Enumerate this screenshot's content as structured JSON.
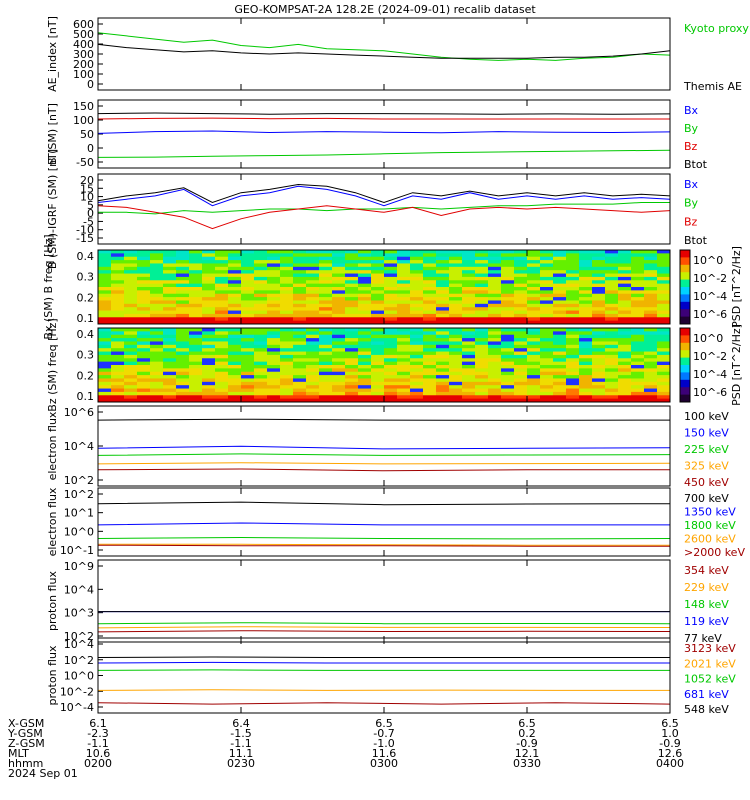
{
  "title": "GEO-KOMPSAT-2A 128.2E (2024-09-01) recalib dataset",
  "chart_data": [
    {
      "type": "line",
      "ylabel": "AE_index [nT]",
      "yticks": [
        "600",
        "500",
        "400",
        "300",
        "200",
        "100",
        "0"
      ],
      "ylim": [
        0,
        600
      ],
      "series": [
        {
          "name": "Kyoto proxy AE",
          "color": "#00c800",
          "x": [
            0.0,
            0.05,
            0.1,
            0.15,
            0.2,
            0.25,
            0.3,
            0.35,
            0.4,
            0.45,
            0.5,
            0.55,
            0.6,
            0.65,
            0.7,
            0.75,
            0.8,
            0.85,
            0.9,
            0.95,
            1.0
          ],
          "y": [
            500,
            470,
            440,
            410,
            430,
            380,
            360,
            390,
            350,
            340,
            330,
            300,
            270,
            250,
            240,
            250,
            240,
            260,
            270,
            300,
            290
          ]
        },
        {
          "name": "Themis AE",
          "color": "#000000",
          "x": [
            0.0,
            0.05,
            0.1,
            0.15,
            0.2,
            0.25,
            0.3,
            0.35,
            0.4,
            0.45,
            0.5,
            0.55,
            0.6,
            0.65,
            0.7,
            0.75,
            0.8,
            0.85,
            0.9,
            0.95,
            1.0
          ],
          "y": [
            390,
            360,
            340,
            320,
            330,
            310,
            300,
            310,
            300,
            290,
            280,
            270,
            260,
            260,
            260,
            260,
            270,
            270,
            280,
            300,
            330
          ]
        }
      ]
    },
    {
      "type": "line",
      "ylabel": "B (SM) [nT]",
      "yticks": [
        "150",
        "100",
        "50",
        "0",
        "-50"
      ],
      "ylim": [
        -50,
        150
      ],
      "series": [
        {
          "name": "Bx",
          "color": "#0000ff",
          "x": [
            0.0,
            0.1,
            0.2,
            0.3,
            0.4,
            0.5,
            0.6,
            0.7,
            0.8,
            0.9,
            1.0
          ],
          "y": [
            52,
            58,
            60,
            55,
            58,
            56,
            54,
            58,
            56,
            55,
            57
          ]
        },
        {
          "name": "By",
          "color": "#00c800",
          "x": [
            0.0,
            0.1,
            0.2,
            0.3,
            0.4,
            0.5,
            0.6,
            0.7,
            0.8,
            0.9,
            1.0
          ],
          "y": [
            -28,
            -27,
            -24,
            -22,
            -20,
            -16,
            -12,
            -10,
            -8,
            -6,
            -4
          ]
        },
        {
          "name": "Bz",
          "color": "#e00000",
          "x": [
            0.0,
            0.1,
            0.2,
            0.3,
            0.4,
            0.5,
            0.6,
            0.7,
            0.8,
            0.9,
            1.0
          ],
          "y": [
            100,
            102,
            103,
            101,
            102,
            100,
            100,
            100,
            100,
            100,
            100
          ]
        },
        {
          "name": "Btot",
          "color": "#000000",
          "x": [
            0.0,
            0.1,
            0.2,
            0.3,
            0.4,
            0.5,
            0.6,
            0.7,
            0.8,
            0.9,
            1.0
          ],
          "y": [
            118,
            120,
            118,
            116,
            118,
            118,
            117,
            116,
            117,
            116,
            117
          ]
        }
      ]
    },
    {
      "type": "line",
      "ylabel": "B (SM)-IGRF (SM) [nT]",
      "yticks": [
        "20",
        "15",
        "10",
        "5",
        "0",
        "-5",
        "-10",
        "-15"
      ],
      "ylim": [
        -17,
        21
      ],
      "series": [
        {
          "name": "Bx",
          "color": "#0000ff",
          "x": [
            0.0,
            0.05,
            0.1,
            0.15,
            0.2,
            0.25,
            0.3,
            0.35,
            0.4,
            0.45,
            0.5,
            0.55,
            0.6,
            0.65,
            0.7,
            0.75,
            0.8,
            0.85,
            0.9,
            0.95,
            1.0
          ],
          "y": [
            6,
            8,
            10,
            14,
            4,
            10,
            12,
            16,
            14,
            10,
            4,
            10,
            8,
            12,
            8,
            10,
            8,
            10,
            8,
            9,
            8
          ]
        },
        {
          "name": "By",
          "color": "#00c800",
          "x": [
            0.0,
            0.05,
            0.1,
            0.15,
            0.2,
            0.25,
            0.3,
            0.35,
            0.4,
            0.45,
            0.5,
            0.55,
            0.6,
            0.65,
            0.7,
            0.75,
            0.8,
            0.85,
            0.9,
            0.95,
            1.0
          ],
          "y": [
            0,
            0,
            -1,
            1,
            0,
            1,
            2,
            2,
            1,
            2,
            2,
            3,
            2,
            3,
            4,
            4,
            5,
            5,
            5,
            6,
            6
          ]
        },
        {
          "name": "Bz",
          "color": "#e00000",
          "x": [
            0.0,
            0.05,
            0.1,
            0.15,
            0.2,
            0.25,
            0.3,
            0.35,
            0.4,
            0.45,
            0.5,
            0.55,
            0.6,
            0.65,
            0.7,
            0.75,
            0.8,
            0.85,
            0.9,
            0.95,
            1.0
          ],
          "y": [
            4,
            3,
            0,
            -3,
            -10,
            -4,
            0,
            2,
            4,
            2,
            0,
            3,
            -2,
            2,
            3,
            2,
            3,
            2,
            1,
            0,
            1
          ]
        },
        {
          "name": "Btot",
          "color": "#000000",
          "x": [
            0.0,
            0.05,
            0.1,
            0.15,
            0.2,
            0.25,
            0.3,
            0.35,
            0.4,
            0.45,
            0.5,
            0.55,
            0.6,
            0.65,
            0.7,
            0.75,
            0.8,
            0.85,
            0.9,
            0.95,
            1.0
          ],
          "y": [
            7,
            10,
            12,
            15,
            6,
            12,
            14,
            17,
            16,
            12,
            6,
            12,
            10,
            13,
            10,
            12,
            10,
            12,
            10,
            11,
            10
          ]
        }
      ]
    },
    {
      "type": "heatmap",
      "ylabel": "Bx (SM) B freq [Hz]",
      "yticks": [
        "0.4",
        "0.3",
        "0.2",
        "0.1"
      ],
      "ylim": [
        0.0,
        0.5
      ],
      "colorbar": {
        "label": "PSD [nT^2/Hz]",
        "ticks": [
          "10^0",
          "10^-2",
          "10^-4",
          "10^-6"
        ]
      }
    },
    {
      "type": "heatmap",
      "ylabel": "Bz (SM) freq [Hz]",
      "yticks": [
        "0.4",
        "0.3",
        "0.2",
        "0.1"
      ],
      "ylim": [
        0.0,
        0.5
      ],
      "colorbar": {
        "label": "PSD [nT^2/Hz]",
        "ticks": [
          "10^0",
          "10^-2",
          "10^-4",
          "10^-6"
        ]
      }
    },
    {
      "type": "line",
      "ylabel": "electron flux",
      "yscale": "log",
      "yticks": [
        "10^6",
        "10^4",
        "10^2"
      ],
      "ylim": [
        10,
        1000000
      ],
      "series": [
        {
          "name": "100 keV",
          "color": "#000000",
          "x": [
            0,
            0.25,
            0.5,
            0.75,
            1
          ],
          "y": [
            200000,
            230000,
            200000,
            190000,
            200000
          ]
        },
        {
          "name": "150 keV",
          "color": "#0000ff",
          "x": [
            0,
            0.25,
            0.5,
            0.75,
            1
          ],
          "y": [
            2200,
            3000,
            2000,
            2200,
            2400
          ]
        },
        {
          "name": "225 keV",
          "color": "#00c800",
          "x": [
            0,
            0.25,
            0.5,
            0.75,
            1
          ],
          "y": [
            700,
            900,
            700,
            750,
            800
          ]
        },
        {
          "name": "325 keV",
          "color": "#ffa500",
          "x": [
            0,
            0.25,
            0.5,
            0.75,
            1
          ],
          "y": [
            180,
            220,
            180,
            190,
            200
          ]
        },
        {
          "name": "450 keV",
          "color": "#a00000",
          "x": [
            0,
            0.25,
            0.5,
            0.75,
            1
          ],
          "y": [
            70,
            80,
            60,
            70,
            70
          ]
        }
      ]
    },
    {
      "type": "line",
      "ylabel": "electron flux",
      "yscale": "log",
      "yticks": [
        "10^2",
        "10^1",
        "10^0",
        "10^-1"
      ],
      "ylim": [
        0.08,
        100
      ],
      "series": [
        {
          "name": "700 keV",
          "color": "#000000",
          "x": [
            0,
            0.25,
            0.5,
            0.75,
            1
          ],
          "y": [
            25,
            30,
            22,
            24,
            25
          ]
        },
        {
          "name": "1350 keV",
          "color": "#0000ff",
          "x": [
            0,
            0.25,
            0.5,
            0.75,
            1
          ],
          "y": [
            2,
            2.5,
            2,
            2,
            2
          ]
        },
        {
          "name": "1800 keV",
          "color": "#00c800",
          "x": [
            0,
            0.25,
            0.5,
            0.75,
            1
          ],
          "y": [
            0.4,
            0.45,
            0.4,
            0.38,
            0.4
          ]
        },
        {
          "name": "2600 keV",
          "color": "#ffa500",
          "x": [
            0,
            0.25,
            0.5,
            0.75,
            1
          ],
          "y": [
            0.2,
            0.2,
            0.19,
            0.18,
            0.18
          ]
        },
        {
          "name": ">2000 keV",
          "color": "#a00000",
          "x": [
            0,
            0.25,
            0.5,
            0.75,
            1
          ],
          "y": [
            0.18,
            0.17,
            0.17,
            0.16,
            0.16
          ]
        }
      ]
    },
    {
      "type": "line",
      "ylabel": "proton flux",
      "yscale": "log",
      "yticks": [
        "10^9",
        "10^4",
        "10^3",
        "10^2"
      ],
      "ylim": [
        50,
        1000000000
      ],
      "series": [
        {
          "name": "354 keV",
          "color": "#a00000",
          "x": [
            0,
            0.25,
            0.5,
            0.75,
            1
          ],
          "y": [
            200,
            260,
            220,
            230,
            220
          ]
        },
        {
          "name": "229 keV",
          "color": "#ffa500",
          "x": [
            0,
            0.25,
            0.5,
            0.75,
            1
          ],
          "y": [
            500,
            650,
            550,
            560,
            540
          ]
        },
        {
          "name": "148 keV",
          "color": "#00c800",
          "x": [
            0,
            0.25,
            0.5,
            0.75,
            1
          ],
          "y": [
            1300,
            1600,
            1300,
            1350,
            1300
          ]
        },
        {
          "name": "119 keV",
          "color": "#0000ff",
          "x": [
            0,
            0.25,
            0.5,
            0.75,
            1
          ],
          "y": [
            20000,
            20000,
            20000,
            20000,
            20000
          ]
        },
        {
          "name": "77 keV",
          "color": "#000000",
          "x": [
            0,
            0.25,
            0.5,
            0.75,
            1
          ],
          "y": [
            20000,
            20000,
            20000,
            20000,
            20000
          ]
        }
      ]
    },
    {
      "type": "line",
      "ylabel": "proton flux",
      "yscale": "log",
      "yticks": [
        "10^4",
        "10^2",
        "10^0",
        "10^-2",
        "10^-4"
      ],
      "ylim": [
        5e-05,
        10000
      ],
      "series": [
        {
          "name": "3123 keV",
          "color": "#a00000",
          "x": [
            0,
            0.2,
            0.4,
            0.6,
            0.8,
            1
          ],
          "y": [
            0.0003,
            0.0002,
            0.0003,
            0.0002,
            0.0003,
            0.0002
          ]
        },
        {
          "name": "2021 keV",
          "color": "#ffa500",
          "x": [
            0,
            0.2,
            0.4,
            0.6,
            0.8,
            1
          ],
          "y": [
            0.01,
            0.012,
            0.01,
            0.011,
            0.01,
            0.01
          ]
        },
        {
          "name": "1052 keV",
          "color": "#00c800",
          "x": [
            0,
            0.2,
            0.4,
            0.6,
            0.8,
            1
          ],
          "y": [
            3,
            3.5,
            3,
            3,
            3,
            3
          ]
        },
        {
          "name": "681 keV",
          "color": "#0000ff",
          "x": [
            0,
            0.2,
            0.4,
            0.6,
            0.8,
            1
          ],
          "y": [
            25,
            30,
            25,
            25,
            25,
            25
          ]
        },
        {
          "name": "548 keV",
          "color": "#000000",
          "x": [
            0,
            0.2,
            0.4,
            0.6,
            0.8,
            1
          ],
          "y": [
            120,
            140,
            120,
            120,
            120,
            120
          ]
        }
      ]
    }
  ],
  "ephemeris": {
    "labels": [
      "X-GSM",
      "Y-GSM",
      "Z-GSM",
      "MLT",
      "hhmm"
    ],
    "date": "2024 Sep 01",
    "columns": [
      {
        "x": "6.1",
        "y": "-2.3",
        "z": "-1.1",
        "mlt": "10.6",
        "hhmm": "0200"
      },
      {
        "x": "6.4",
        "y": "-1.5",
        "z": "-1.1",
        "mlt": "11.1",
        "hhmm": "0230"
      },
      {
        "x": "6.5",
        "y": "-0.7",
        "z": "-1.0",
        "mlt": "11.6",
        "hhmm": "0300"
      },
      {
        "x": "6.5",
        "y": "0.2",
        "z": "-0.9",
        "mlt": "12.1",
        "hhmm": "0330"
      },
      {
        "x": "6.5",
        "y": "1.0",
        "z": "-0.9",
        "mlt": "12.6",
        "hhmm": "0400"
      }
    ]
  }
}
